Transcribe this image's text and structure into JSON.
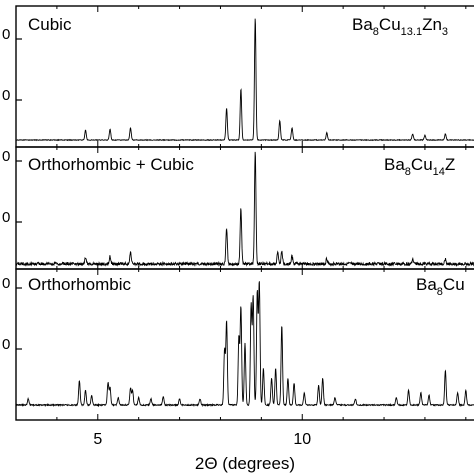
{
  "chart_data": {
    "type": "line",
    "xlabel": "2Θ (degrees)",
    "x_ticks": [
      5,
      10
    ],
    "x_range": [
      3,
      14.2
    ],
    "stacked_panels": true,
    "grid": false,
    "y_tick_labels_visible": [
      "0",
      "0",
      "0",
      "0",
      "0",
      "0"
    ],
    "panels": [
      {
        "label": "Cubic",
        "formula": {
          "base": "Ba",
          "sub1": "8",
          "mid": "Cu",
          "sub2": "13.1",
          "tail": "Zn",
          "sub3": "3"
        },
        "peaks": [
          [
            4.7,
            0.08
          ],
          [
            5.3,
            0.09
          ],
          [
            5.8,
            0.1
          ],
          [
            8.15,
            0.26
          ],
          [
            8.5,
            0.42
          ],
          [
            8.85,
            1.0
          ],
          [
            9.45,
            0.16
          ],
          [
            9.75,
            0.1
          ],
          [
            10.6,
            0.06
          ],
          [
            12.7,
            0.05
          ],
          [
            13.0,
            0.04
          ],
          [
            13.5,
            0.05
          ]
        ]
      },
      {
        "label": "Orthorhombic + Cubic",
        "formula": {
          "base": "Ba",
          "sub1": "8",
          "mid": "Cu",
          "sub2": "14",
          "tail": "Z",
          "sub3": ""
        },
        "peaks": [
          [
            4.7,
            0.06
          ],
          [
            5.3,
            0.07
          ],
          [
            5.8,
            0.1
          ],
          [
            8.15,
            0.32
          ],
          [
            8.5,
            0.5
          ],
          [
            8.85,
            1.0
          ],
          [
            9.4,
            0.1
          ],
          [
            9.5,
            0.12
          ],
          [
            9.75,
            0.07
          ],
          [
            10.6,
            0.05
          ],
          [
            12.7,
            0.04
          ],
          [
            13.5,
            0.05
          ]
        ]
      },
      {
        "label": "Orthorhombic",
        "formula": {
          "base": "Ba",
          "sub1": "8",
          "mid": "Cu",
          "sub2": "",
          "tail": "",
          "sub3": ""
        },
        "peaks": [
          [
            3.3,
            0.05
          ],
          [
            4.55,
            0.2
          ],
          [
            4.7,
            0.12
          ],
          [
            4.85,
            0.08
          ],
          [
            5.25,
            0.18
          ],
          [
            5.3,
            0.14
          ],
          [
            5.5,
            0.06
          ],
          [
            5.8,
            0.14
          ],
          [
            5.85,
            0.12
          ],
          [
            6.0,
            0.06
          ],
          [
            6.3,
            0.05
          ],
          [
            6.6,
            0.07
          ],
          [
            7.0,
            0.05
          ],
          [
            7.5,
            0.05
          ],
          [
            8.1,
            0.45
          ],
          [
            8.15,
            0.68
          ],
          [
            8.45,
            0.55
          ],
          [
            8.5,
            0.8
          ],
          [
            8.6,
            0.5
          ],
          [
            8.75,
            0.82
          ],
          [
            8.8,
            0.88
          ],
          [
            8.9,
            0.92
          ],
          [
            8.95,
            1.0
          ],
          [
            9.05,
            0.3
          ],
          [
            9.25,
            0.22
          ],
          [
            9.35,
            0.3
          ],
          [
            9.5,
            0.65
          ],
          [
            9.65,
            0.22
          ],
          [
            9.8,
            0.18
          ],
          [
            10.05,
            0.1
          ],
          [
            10.4,
            0.16
          ],
          [
            10.5,
            0.22
          ],
          [
            10.8,
            0.06
          ],
          [
            11.3,
            0.05
          ],
          [
            12.3,
            0.06
          ],
          [
            12.6,
            0.12
          ],
          [
            12.9,
            0.1
          ],
          [
            13.1,
            0.08
          ],
          [
            13.5,
            0.28
          ],
          [
            13.8,
            0.1
          ],
          [
            14.0,
            0.12
          ]
        ]
      }
    ]
  }
}
